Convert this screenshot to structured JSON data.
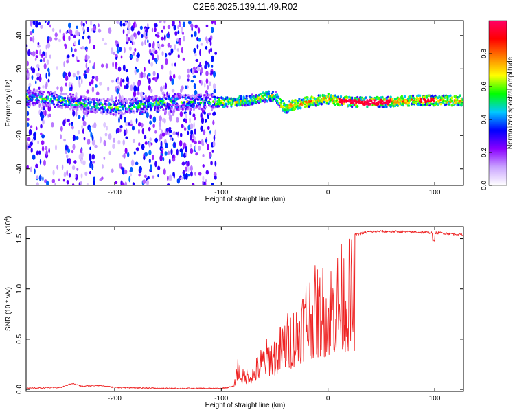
{
  "title": "C2E6.2025.139.11.49.R02",
  "chart_data": [
    {
      "type": "heatmap",
      "xlabel": "Height of straight line (km)",
      "ylabel": "Frequency (Hz)",
      "xlim": [
        -283,
        127
      ],
      "ylim": [
        -50,
        49
      ],
      "x_ticks": [
        -200,
        -100,
        0,
        100
      ],
      "x_tick_labels": [
        "-200",
        "-100",
        "0",
        "100"
      ],
      "y_ticks": [
        -40,
        -20,
        0,
        20,
        40
      ],
      "y_tick_labels": [
        "-40",
        "-20",
        "0",
        "20",
        "40"
      ],
      "colorbar": {
        "label": "Normalized spectral amplitude",
        "range": [
          0,
          1
        ],
        "ticks": [
          0.0,
          0.2,
          0.4,
          0.6,
          0.8
        ],
        "tick_labels": [
          "0.0",
          "0.2",
          "0.4",
          "0.6",
          "0.8"
        ],
        "colors": [
          "#ffffff",
          "#c9a4ff",
          "#8a00ff",
          "#0000ff",
          "#00c8ff",
          "#00ff00",
          "#ffff00",
          "#ff8000",
          "#ff0000",
          "#ff0066"
        ]
      },
      "centerline": {
        "x": [
          -283,
          -250,
          -220,
          -200,
          -180,
          -150,
          -110,
          -90,
          -75,
          -60,
          -50,
          -45,
          -40,
          -35,
          -20,
          0,
          20,
          50,
          80,
          100,
          127
        ],
        "y": [
          3,
          1,
          -2,
          -3,
          -2,
          0,
          0,
          0,
          1,
          3,
          4,
          0,
          -4,
          -2,
          0,
          2,
          0,
          0,
          1,
          1,
          1
        ]
      },
      "noise_region_x": [
        -283,
        -105
      ],
      "grid": false
    },
    {
      "type": "line",
      "xlabel": "Height of straight line (km)",
      "ylabel": "SNR (10 * v/v)",
      "y_multiplier": "(x10^4)",
      "y_multiplier_base": "(x10",
      "y_multiplier_exp": "4",
      "y_multiplier_close": ")",
      "xlim": [
        -283,
        127
      ],
      "ylim": [
        -0.02,
        1.62
      ],
      "x_ticks": [
        -200,
        -100,
        0,
        100
      ],
      "x_tick_labels": [
        "-200",
        "-100",
        "0",
        "100"
      ],
      "y_ticks": [
        0.0,
        0.5,
        1.0,
        1.5
      ],
      "y_tick_labels": [
        "0.0",
        "0.5",
        "1.0",
        "1.5"
      ],
      "color": "#ee2222",
      "envelope": {
        "x": [
          -283,
          -250,
          -240,
          -230,
          -215,
          -200,
          -150,
          -100,
          -88,
          -85,
          -80,
          -70,
          -60,
          -50,
          -40,
          -30,
          -20,
          -10,
          0,
          10,
          20,
          30,
          40,
          60,
          100,
          127
        ],
        "y": [
          0.01,
          0.02,
          0.06,
          0.03,
          0.04,
          0.02,
          0.01,
          0.01,
          0.03,
          0.35,
          0.2,
          0.25,
          0.5,
          0.55,
          0.75,
          0.9,
          1.2,
          1.25,
          1.3,
          1.45,
          1.52,
          1.55,
          1.57,
          1.57,
          1.56,
          1.54
        ]
      },
      "grid": false
    }
  ]
}
